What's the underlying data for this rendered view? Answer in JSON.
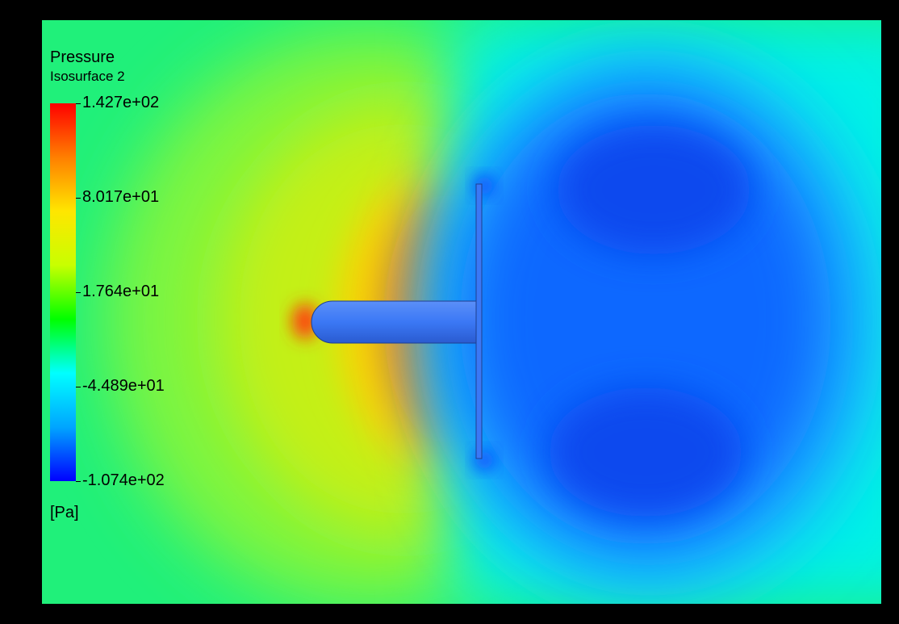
{
  "chart_data": {
    "type": "heatmap",
    "title": "Pressure",
    "subtitle": "Isosurface 2",
    "unit": "[Pa]",
    "colorbar": {
      "min": -107.4,
      "max": 142.7,
      "ticks": [
        {
          "value": 142.7,
          "label": "1.427e+02"
        },
        {
          "value": 80.17,
          "label": "8.017e+01"
        },
        {
          "value": 17.64,
          "label": "1.764e+01"
        },
        {
          "value": -44.89,
          "label": "-4.489e+01"
        },
        {
          "value": -107.4,
          "label": "-1.074e+02"
        }
      ],
      "colors": [
        "#0000ff",
        "#00a5ff",
        "#00ffff",
        "#00ff00",
        "#c8ff00",
        "#ffe600",
        "#ff7f00",
        "#ff0000"
      ]
    },
    "colors": {
      "background": "#000000",
      "ambient": "#20f07a",
      "upstream": "#b4f018",
      "stagnation": "#ff5a10",
      "wake": "#1060ff",
      "wake_edge": "#00ffff",
      "body": "#3b78f5"
    }
  }
}
